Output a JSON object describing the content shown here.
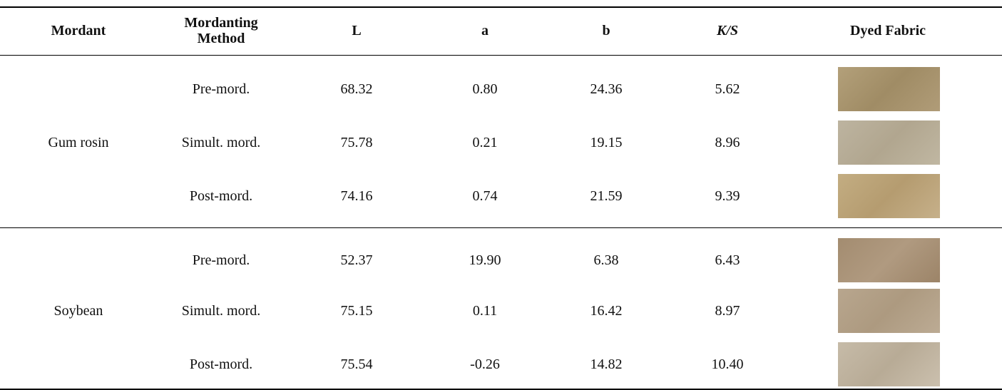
{
  "table": {
    "header": [
      "Mordant",
      "Mordanting Method",
      "L",
      "a",
      "b",
      "K/S",
      "Dyed Fabric"
    ],
    "groups": [
      {
        "mordant": "Gum rosin",
        "rows": [
          [
            "Pre-mord.",
            "68.32",
            "0.80",
            "24.36",
            "5.62"
          ],
          [
            "Simult. mord.",
            "75.78",
            "0.21",
            "19.15",
            "8.96"
          ],
          [
            "Post-mord.",
            "74.16",
            "0.74",
            "21.59",
            "9.39"
          ]
        ]
      },
      {
        "mordant": "Soybean",
        "rows": [
          [
            "Pre-mord.",
            "52.37",
            "19.90",
            "6.38",
            "6.43"
          ],
          [
            "Simult. mord.",
            "75.15",
            "0.11",
            "16.42",
            "8.97"
          ],
          [
            "Post-mord.",
            "75.54",
            "-0.26",
            "14.82",
            "10.40"
          ]
        ]
      }
    ]
  }
}
